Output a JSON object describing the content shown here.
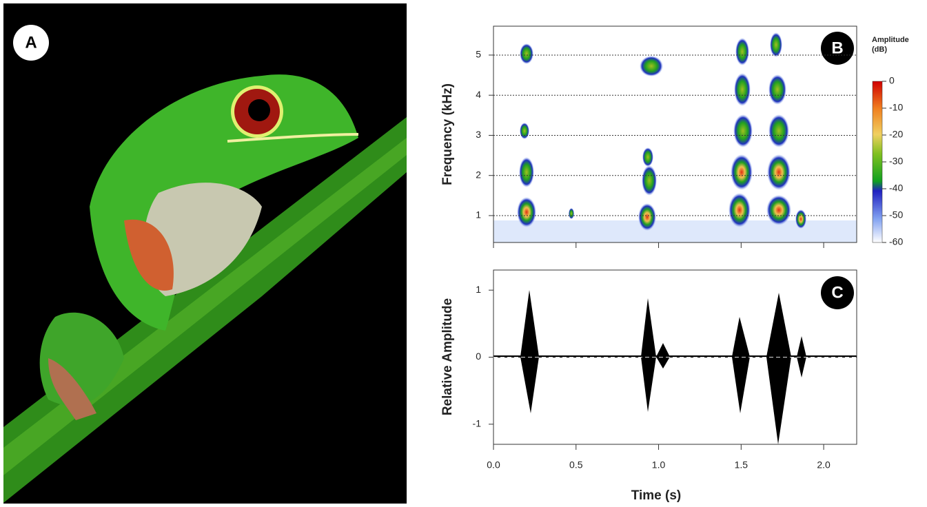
{
  "panel_labels": [
    "A",
    "B",
    "C"
  ],
  "spectrogram": {
    "ylabel": "Frequency (kHz)",
    "ylim": [
      0.33,
      5.72
    ],
    "yticks": [
      1,
      2,
      3,
      4,
      5
    ],
    "xlim": [
      0,
      2.2
    ],
    "xticks": [
      0,
      0.5,
      1,
      1.5,
      2
    ],
    "colorbar": {
      "title": [
        "Amplitude",
        "(dB)"
      ],
      "lim": [
        -60,
        0
      ],
      "ticks": [
        0,
        -10,
        -20,
        -30,
        -40,
        -50,
        -60
      ]
    }
  },
  "waveform": {
    "ylabel": "Relative Amplitude",
    "xlabel": "Time (s)",
    "ylim": [
      -1.3,
      1.3
    ],
    "yticks": [
      1,
      0,
      -1
    ],
    "xlim": [
      0,
      2.2
    ],
    "xticks": [
      {
        "value": 0,
        "label": "0.0"
      },
      0.5,
      {
        "value": 1,
        "label": "1.0"
      },
      1.5,
      {
        "value": 2,
        "label": "2.0"
      }
    ]
  }
}
